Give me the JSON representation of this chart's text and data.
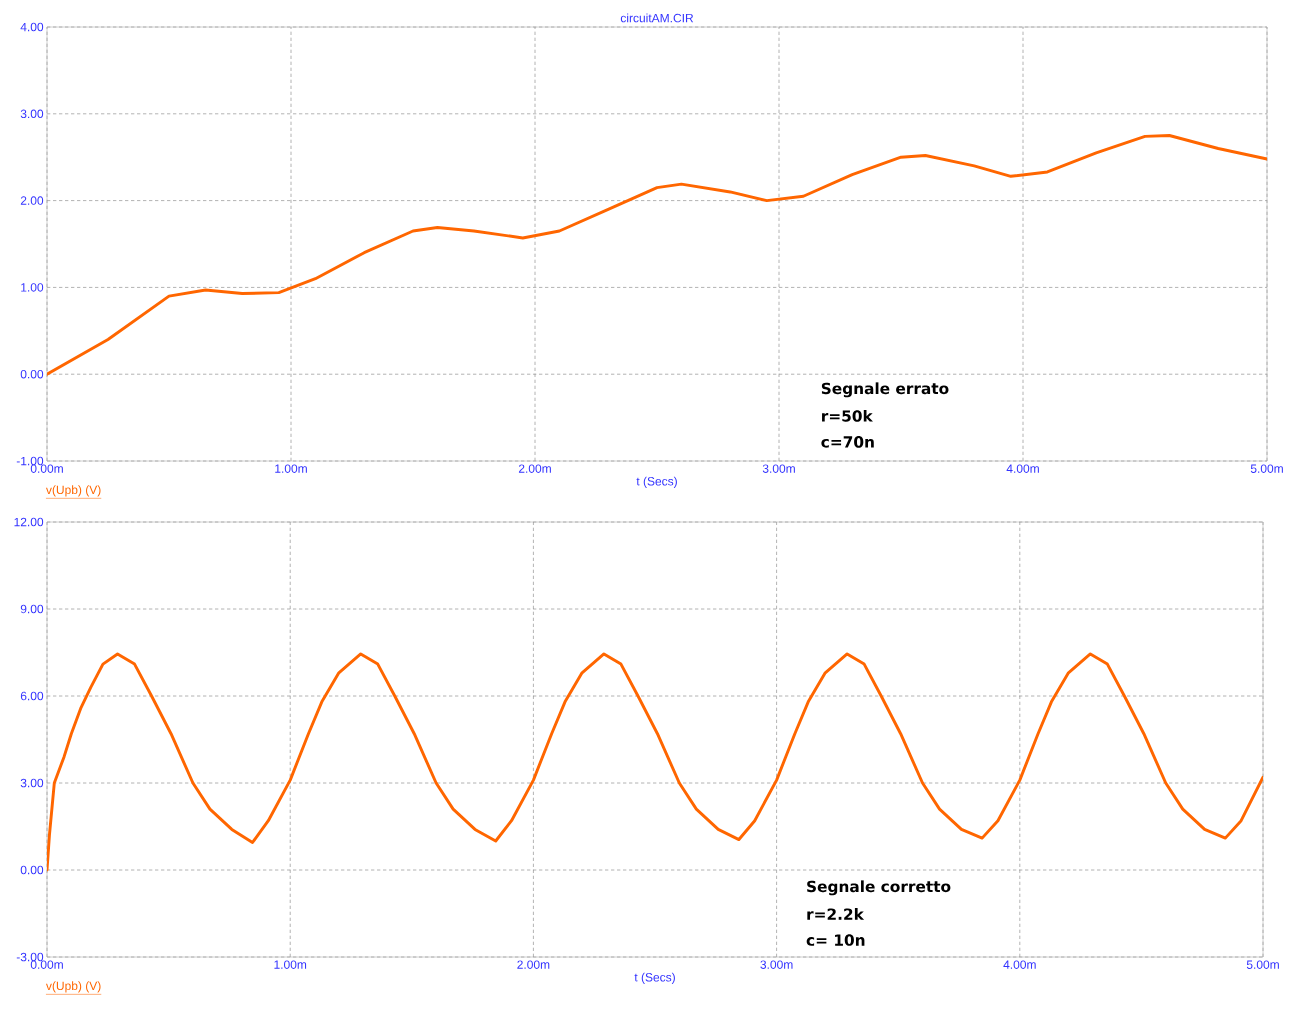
{
  "chart_data": [
    {
      "type": "line",
      "title": "circuitAM.CIR",
      "xlabel": "t (Secs)",
      "grid": true,
      "line_style": "solid",
      "xlim": [
        0,
        5
      ],
      "ylim": [
        -1,
        4
      ],
      "xticks": [
        {
          "value": 0,
          "label": "0.00m"
        },
        {
          "value": 1,
          "label": "1.00m"
        },
        {
          "value": 2,
          "label": "2.00m"
        },
        {
          "value": 3,
          "label": "3.00m"
        },
        {
          "value": 4,
          "label": "4.00m"
        },
        {
          "value": 5,
          "label": "5.00m"
        }
      ],
      "yticks": [
        {
          "value": -1,
          "label": "-1.00"
        },
        {
          "value": 0,
          "label": "0.00"
        },
        {
          "value": 1,
          "label": "1.00"
        },
        {
          "value": 2,
          "label": "2.00"
        },
        {
          "value": 3,
          "label": "3.00"
        },
        {
          "value": 4,
          "label": "4.00"
        }
      ],
      "annotations": [
        "Segnale errato",
        "r=50k",
        "c=70n"
      ],
      "series": [
        {
          "name": "v(Upb) (V)",
          "color": "#ff6600",
          "x": [
            0,
            0.25,
            0.5,
            0.65,
            0.8,
            0.95,
            1.1,
            1.3,
            1.5,
            1.6,
            1.75,
            1.95,
            2.1,
            2.3,
            2.5,
            2.6,
            2.8,
            2.95,
            3.1,
            3.3,
            3.5,
            3.6,
            3.8,
            3.95,
            4.1,
            4.3,
            4.5,
            4.6,
            4.8,
            5.0
          ],
          "values": [
            0,
            0.4,
            0.9,
            0.97,
            0.93,
            0.94,
            1.1,
            1.4,
            1.65,
            1.69,
            1.65,
            1.57,
            1.65,
            1.9,
            2.15,
            2.19,
            2.1,
            2.0,
            2.05,
            2.3,
            2.5,
            2.52,
            2.4,
            2.28,
            2.33,
            2.55,
            2.74,
            2.75,
            2.6,
            2.48
          ]
        }
      ]
    },
    {
      "type": "line",
      "xlabel": "t (Secs)",
      "grid": true,
      "line_style": "solid",
      "xlim": [
        0,
        5
      ],
      "ylim": [
        -3,
        12
      ],
      "xticks": [
        {
          "value": 0,
          "label": "0.00m"
        },
        {
          "value": 1,
          "label": "1.00m"
        },
        {
          "value": 2,
          "label": "2.00m"
        },
        {
          "value": 3,
          "label": "3.00m"
        },
        {
          "value": 4,
          "label": "4.00m"
        },
        {
          "value": 5,
          "label": "5.00m"
        }
      ],
      "yticks": [
        {
          "value": -3,
          "label": "-3.00"
        },
        {
          "value": 0,
          "label": "0.00"
        },
        {
          "value": 3,
          "label": "3.00"
        },
        {
          "value": 6,
          "label": "6.00"
        },
        {
          "value": 9,
          "label": "9.00"
        },
        {
          "value": 12,
          "label": "12.00"
        }
      ],
      "annotations": [
        "Segnale corretto",
        "r=2.2k",
        "c= 10n"
      ],
      "series": [
        {
          "name": "v(Upb) (V)",
          "color": "#ff6600",
          "x": [
            0,
            0.01,
            0.03,
            0.07,
            0.1,
            0.14,
            0.18,
            0.23,
            0.29,
            0.36,
            0.43,
            0.51,
            0.6,
            0.67,
            0.76,
            0.845,
            0.91,
            1.0,
            1.075,
            1.13,
            1.2,
            1.29,
            1.36,
            1.43,
            1.51,
            1.6,
            1.67,
            1.76,
            1.845,
            1.91,
            2.0,
            2.075,
            2.13,
            2.2,
            2.29,
            2.36,
            2.43,
            2.51,
            2.6,
            2.67,
            2.76,
            2.845,
            2.91,
            3.0,
            3.075,
            3.13,
            3.2,
            3.29,
            3.36,
            3.43,
            3.51,
            3.6,
            3.67,
            3.76,
            3.845,
            3.91,
            4.0,
            4.075,
            4.13,
            4.2,
            4.29,
            4.36,
            4.43,
            4.51,
            4.6,
            4.67,
            4.76,
            4.845,
            4.91,
            5.0
          ],
          "values": [
            0,
            1.2,
            3.0,
            3.9,
            4.7,
            5.6,
            6.3,
            7.1,
            7.45,
            7.1,
            6.0,
            4.7,
            3.0,
            2.1,
            1.4,
            0.95,
            1.7,
            3.1,
            4.7,
            5.8,
            6.8,
            7.45,
            7.1,
            6.0,
            4.7,
            3.0,
            2.1,
            1.4,
            1.0,
            1.7,
            3.1,
            4.7,
            5.8,
            6.8,
            7.45,
            7.1,
            6.0,
            4.7,
            3.0,
            2.1,
            1.4,
            1.05,
            1.7,
            3.1,
            4.7,
            5.8,
            6.8,
            7.45,
            7.1,
            6.0,
            4.7,
            3.0,
            2.1,
            1.4,
            1.1,
            1.7,
            3.1,
            4.7,
            5.8,
            6.8,
            7.45,
            7.1,
            6.0,
            4.7,
            3.0,
            2.1,
            1.4,
            1.1,
            1.7,
            3.2
          ]
        }
      ]
    }
  ]
}
